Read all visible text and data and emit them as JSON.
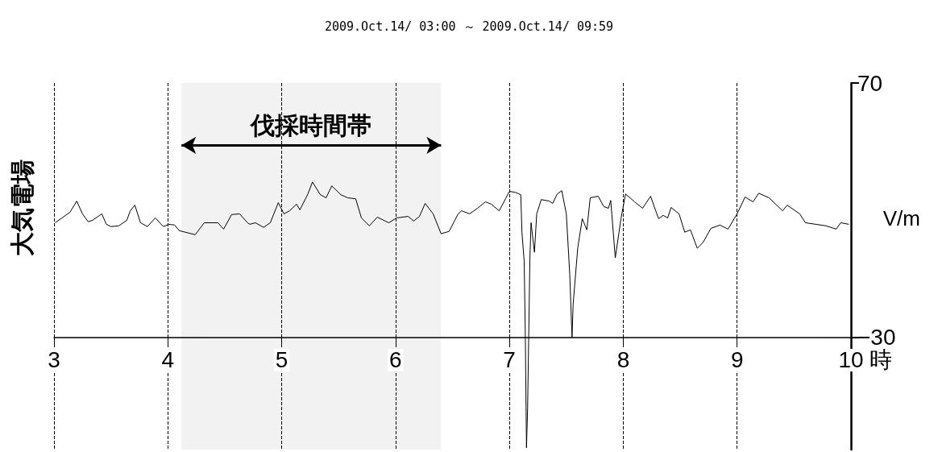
{
  "chart_data": {
    "type": "line",
    "title": "2009.Oct.14/ 03:00 ～ 2009.Oct.14/ 09:59",
    "xlabel": "時",
    "ylabel": "大気電場",
    "annotations": [
      "V/m"
    ],
    "bands": [
      {
        "axis": "x",
        "from": 4.12,
        "to": 6.4,
        "label": "伐採時間帯",
        "color": "#000000"
      }
    ],
    "xlim": [
      3,
      10
    ],
    "xticks": [
      3,
      4,
      5,
      6,
      7,
      8,
      9,
      10
    ],
    "ylim": [
      -74,
      70
    ],
    "yticks": [
      -30,
      70
    ],
    "grid": "x",
    "marker": "none",
    "line_style": "solid",
    "series": [
      {
        "color": "#000000",
        "x": [
          3.01,
          3.07,
          3.14,
          3.2,
          3.25,
          3.3,
          3.34,
          3.42,
          3.46,
          3.5,
          3.57,
          3.64,
          3.67,
          3.71,
          3.76,
          3.82,
          3.89,
          3.96,
          4.01,
          4.06,
          4.1,
          4.24,
          4.32,
          4.44,
          4.49,
          4.56,
          4.63,
          4.7,
          4.72,
          4.77,
          4.84,
          4.9,
          4.97,
          5.02,
          5.07,
          5.13,
          5.16,
          5.23,
          5.27,
          5.34,
          5.39,
          5.44,
          5.52,
          5.58,
          5.65,
          5.7,
          5.77,
          5.84,
          5.94,
          6.01,
          6.11,
          6.16,
          6.21,
          6.26,
          6.33,
          6.4,
          6.47,
          6.55,
          6.58,
          6.65,
          6.72,
          6.79,
          6.84,
          6.91,
          7.0,
          7.05,
          7.1,
          7.11,
          7.13,
          7.14,
          7.15,
          7.16,
          7.18,
          7.19,
          7.22,
          7.24,
          7.28,
          7.35,
          7.38,
          7.42,
          7.46,
          7.5,
          7.53,
          7.55,
          7.56,
          7.6,
          7.64,
          7.68,
          7.71,
          7.78,
          7.83,
          7.87,
          7.89,
          7.93,
          7.98,
          8.02,
          8.1,
          8.17,
          8.24,
          8.31,
          8.35,
          8.39,
          8.42,
          8.49,
          8.54,
          8.59,
          8.65,
          8.7,
          8.77,
          8.85,
          8.92,
          9.0,
          9.07,
          9.14,
          9.19,
          9.28,
          9.4,
          9.44,
          9.55,
          9.6,
          9.69,
          9.78,
          9.87,
          9.91,
          9.98
        ],
        "values": [
          15.1,
          17.0,
          19.2,
          23.6,
          18.6,
          15.5,
          16.1,
          18.6,
          14.5,
          13.6,
          13.9,
          16.1,
          19.8,
          22.0,
          15.1,
          13.6,
          17.0,
          13.6,
          14.5,
          14.2,
          12.0,
          10.4,
          15.1,
          15.1,
          12.6,
          18.3,
          18.6,
          15.1,
          14.5,
          15.1,
          13.3,
          15.1,
          23.0,
          18.6,
          19.8,
          22.4,
          20.2,
          26.4,
          31.1,
          26.1,
          24.9,
          29.6,
          26.1,
          24.9,
          24.5,
          17.0,
          13.9,
          17.3,
          15.1,
          17.0,
          17.6,
          15.8,
          17.6,
          22.7,
          18.6,
          10.8,
          11.7,
          18.6,
          19.8,
          18.6,
          20.8,
          23.3,
          22.4,
          19.8,
          27.4,
          27.1,
          26.1,
          11.4,
          -0.2,
          -30,
          -73.3,
          -57.6,
          1.0,
          15.1,
          3.5,
          18.6,
          24.2,
          23.6,
          22.7,
          26.4,
          27.7,
          18.6,
          -5.2,
          -30,
          -16.8,
          5.1,
          16.7,
          12.3,
          24.9,
          25.5,
          21.4,
          20.8,
          23.9,
          1.3,
          16.7,
          26.4,
          23.3,
          20.8,
          25.5,
          16.7,
          18.0,
          17.0,
          21.1,
          18.6,
          11.4,
          12.3,
          5.1,
          7.3,
          12.9,
          14.2,
          12.6,
          18.6,
          25.2,
          23.3,
          26.7,
          24.9,
          19.8,
          22.0,
          18.6,
          15.1,
          14.5,
          13.9,
          12.6,
          15.1,
          14.5
        ]
      }
    ]
  }
}
